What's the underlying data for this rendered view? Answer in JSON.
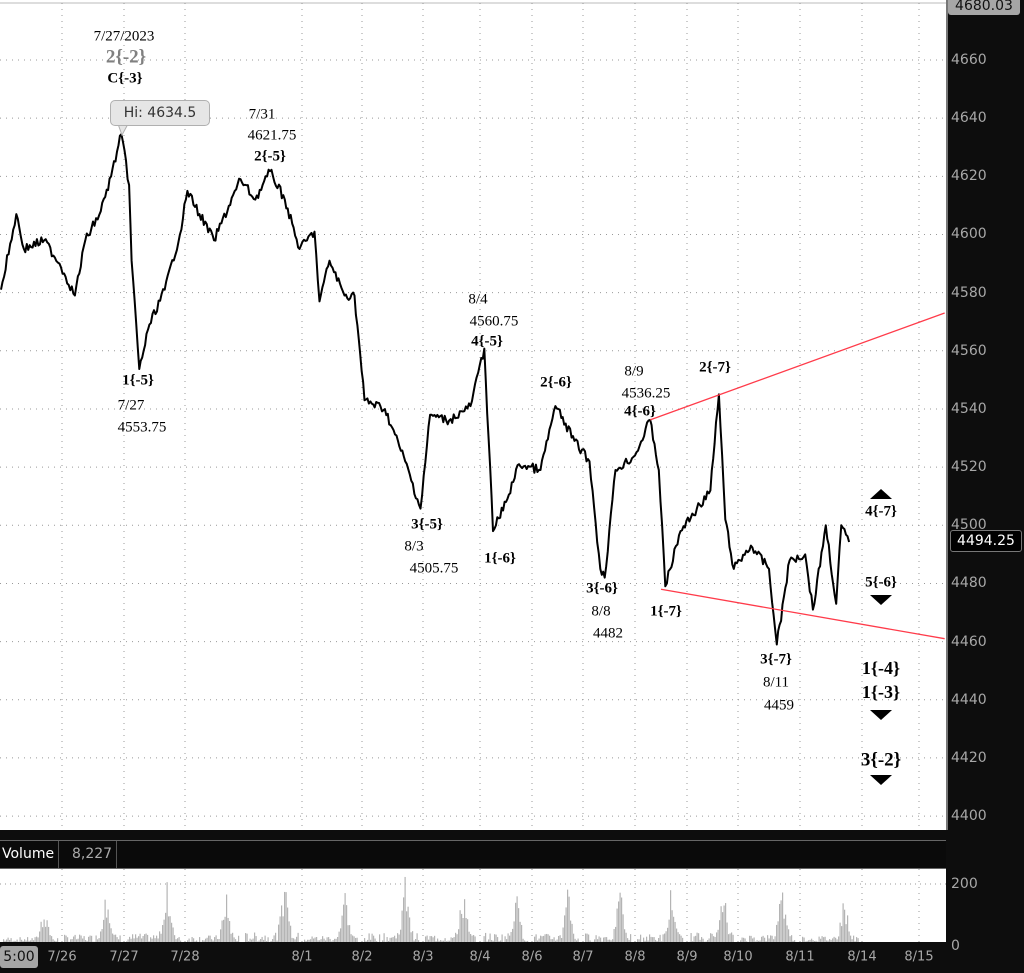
{
  "chart_data": {
    "type": "line",
    "title": "",
    "xlabel": "",
    "ylabel": "",
    "ylim": [
      4395,
      4680.03
    ],
    "grid": true,
    "y_ticks": [
      "4660",
      "4640",
      "4620",
      "4600",
      "4580",
      "4560",
      "4540",
      "4520",
      "4500",
      "4480",
      "4460",
      "4440",
      "4420",
      "4400"
    ],
    "x_ticks": [
      "7/26",
      "7/27",
      "7/28",
      "8/1",
      "8/2",
      "8/3",
      "8/4",
      "8/6",
      "8/7",
      "8/8",
      "8/9",
      "8/10",
      "8/11",
      "8/14",
      "8/15"
    ],
    "series": [
      {
        "color": "#000000",
        "points": [
          [
            "7/25 00:00",
            4581
          ],
          [
            "7/25 06:00",
            4607
          ],
          [
            "7/25 09:00",
            4595
          ],
          [
            "7/25 17:00",
            4598
          ],
          [
            "7/25 23:00",
            4590
          ],
          [
            "7/26 05:00",
            4579
          ],
          [
            "7/26 09:00",
            4598
          ],
          [
            "7/26 15:00",
            4608
          ],
          [
            "7/26 19:00",
            4620
          ],
          [
            "7/26 23:00",
            4634.5
          ],
          [
            "7/27 02:00",
            4617
          ],
          [
            "7/27 03:00",
            4591
          ],
          [
            "7/27 06:00",
            4553.75
          ],
          [
            "7/27 10:00",
            4569
          ],
          [
            "7/27 16:00",
            4581
          ],
          [
            "7/27 22:00",
            4600
          ],
          [
            "7/28 01:00",
            4615
          ],
          [
            "7/28 06:00",
            4607
          ],
          [
            "7/28 12:00",
            4598
          ],
          [
            "7/28 23:00",
            4619
          ],
          [
            "7/31 05:00",
            4612
          ],
          [
            "7/31 11:00",
            4621.75
          ],
          [
            "7/31 17:00",
            4612
          ],
          [
            "7/31 23:00",
            4595
          ],
          [
            "8/1 05:00",
            4601
          ],
          [
            "8/1 07:00",
            4577
          ],
          [
            "8/1 11:00",
            4591
          ],
          [
            "8/1 17:00",
            4579
          ],
          [
            "8/1 21:00",
            4579
          ],
          [
            "8/2 01:00",
            4543
          ],
          [
            "8/2 09:00",
            4540
          ],
          [
            "8/2 17:00",
            4522
          ],
          [
            "8/2 23:00",
            4505.75
          ],
          [
            "8/3 03:00",
            4538
          ],
          [
            "8/3 11:00",
            4536
          ],
          [
            "8/3 20:00",
            4541
          ],
          [
            "8/4 02:00",
            4560.75
          ],
          [
            "8/4 06:00",
            4498
          ],
          [
            "8/4 12:00",
            4508
          ],
          [
            "8/4 18:00",
            4521
          ],
          [
            "8/6 04:00",
            4519
          ],
          [
            "8/6 11:00",
            4541
          ],
          [
            "8/6 20:00",
            4529
          ],
          [
            "8/7 03:00",
            4522
          ],
          [
            "8/7 08:00",
            4485
          ],
          [
            "8/7 10:00",
            4482
          ],
          [
            "8/7 15:00",
            4519
          ],
          [
            "8/8 00:00",
            4524
          ],
          [
            "8/8 07:00",
            4536.25
          ],
          [
            "8/8 11:00",
            4519
          ],
          [
            "8/8 14:00",
            4479
          ],
          [
            "8/8 21:00",
            4498
          ],
          [
            "8/9 06:00",
            4507
          ],
          [
            "8/9 11:00",
            4512
          ],
          [
            "8/9 15:00",
            4545
          ],
          [
            "8/9 18:00",
            4502
          ],
          [
            "8/9 22:00",
            4485
          ],
          [
            "8/10 05:00",
            4493
          ],
          [
            "8/10 12:00",
            4485
          ],
          [
            "8/10 15:00",
            4459
          ],
          [
            "8/10 20:00",
            4488
          ],
          [
            "8/11 02:00",
            4490
          ],
          [
            "8/11 05:00",
            4471
          ],
          [
            "8/11 10:00",
            4500
          ],
          [
            "8/11 14:00",
            4473
          ],
          [
            "8/11 16:00",
            4500
          ],
          [
            "8/11 19:00",
            4494.25
          ]
        ]
      }
    ],
    "trendlines": [
      {
        "color": "#ff3b4a",
        "from": [
          "8/8 07:00",
          4536.25
        ],
        "to": [
          "8/15 11:00",
          4573
        ]
      },
      {
        "color": "#ff3b4a",
        "from": [
          "8/8 12:00",
          4478
        ],
        "to": [
          "8/15 11:00",
          4461
        ]
      }
    ],
    "top_price_label": "4680.03",
    "current_price_label": "4494.25",
    "high_tooltip": "Hi: 4634.5",
    "time_readout": "5:00",
    "volume": {
      "label": "Volume",
      "value": "8,227",
      "y_ticks": [
        "200",
        "0"
      ],
      "bar_color": "#b4b4b4",
      "session_peaks": [
        [
          "7/25",
          110
        ],
        [
          "7/26",
          165
        ],
        [
          "7/27",
          190
        ],
        [
          "7/28",
          150
        ],
        [
          "7/31",
          215
        ],
        [
          "8/1",
          150
        ],
        [
          "8/2",
          195
        ],
        [
          "8/3",
          175
        ],
        [
          "8/4",
          205
        ],
        [
          "8/6",
          185
        ],
        [
          "8/7",
          200
        ],
        [
          "8/8",
          180
        ],
        [
          "8/9",
          215
        ],
        [
          "8/10",
          170
        ],
        [
          "8/11",
          140
        ]
      ]
    }
  },
  "annotations": {
    "peak_date": "7/27/2023",
    "peak_wave_major": "2{-2}",
    "peak_wave": "C{-3}",
    "jul31_date": "7/31",
    "jul31_price": "4621.75",
    "jul31_wave": "2{-5}",
    "jul27_wave": "1{-5}",
    "jul27_date": "7/27",
    "jul27_price": "4553.75",
    "aug4_date": "8/4",
    "aug4_price": "4560.75",
    "aug4_wave": "4{-5}",
    "wave_2_6": "2{-6}",
    "aug9_date": "8/9",
    "aug9_price": "4536.25",
    "aug9_wave": "4{-6}",
    "wave_2_7": "2{-7}",
    "aug3_wave": "3{-5}",
    "aug3_date": "8/3",
    "aug3_price": "4505.75",
    "wave_1_6": "1{-6}",
    "aug8_wave": "3{-6}",
    "aug8_date": "8/8",
    "aug8_price": "4482",
    "wave_1_7": "1{-7}",
    "aug11_wave": "3{-7}",
    "aug11_date": "8/11",
    "aug11_price": "4459",
    "proj_4_7": "4{-7}",
    "proj_5_6": "5{-6}",
    "proj_1_4": "1{-4}",
    "proj_1_3": "1{-3}",
    "proj_3_2": "3{-2}"
  }
}
